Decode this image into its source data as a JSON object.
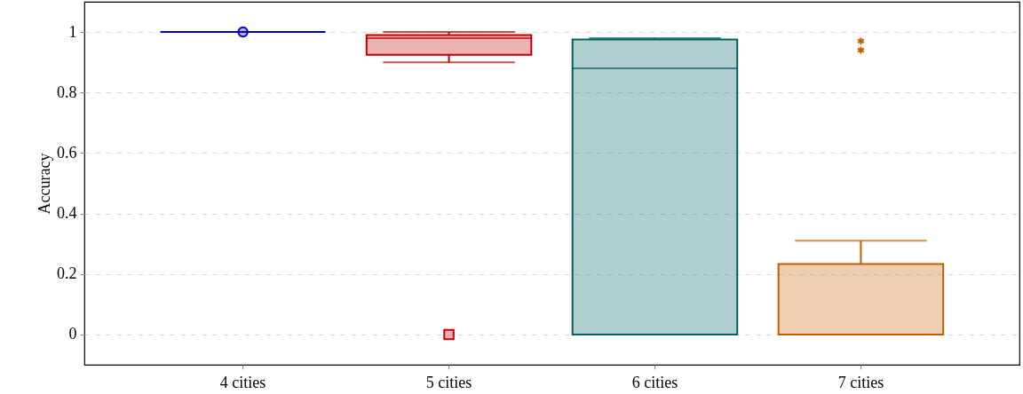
{
  "chart_data": {
    "type": "box",
    "ylabel": "Accuracy",
    "categories": [
      "4 cities",
      "5 cities",
      "6 cities",
      "7 cities"
    ],
    "ylim": [
      -0.1,
      1.1
    ],
    "yticks": [
      0,
      0.2,
      0.4,
      0.6,
      0.8,
      1
    ],
    "grid": "y",
    "line_style": "solid",
    "series": [
      {
        "color": "#0000bf",
        "marker": "circle",
        "x": [
          "4 cities"
        ],
        "boxes": [
          {
            "low": 1,
            "q1": 1,
            "median": 1,
            "q3": 1,
            "high": 1,
            "outliers": [
              1
            ]
          }
        ]
      },
      {
        "color": "#bf0000",
        "marker": "square",
        "x": [
          "5 cities"
        ],
        "boxes": [
          {
            "low": 0.9,
            "q1": 0.925,
            "median": 0.98,
            "q3": 0.99,
            "high": 1,
            "outliers": [
              0
            ]
          }
        ]
      },
      {
        "color": "#006060",
        "x": [
          "6 cities"
        ],
        "boxes": [
          {
            "low": 0,
            "q1": 0,
            "median": 0.88,
            "q3": 0.975,
            "high": 0.98
          }
        ]
      },
      {
        "color": "#bf5f00",
        "marker": "star",
        "x": [
          "7 cities"
        ],
        "boxes": [
          {
            "low": 0,
            "q1": 0,
            "median": 0,
            "q3": 0.233,
            "high": 0.31,
            "outliers": [
              0.97,
              0.94
            ]
          }
        ]
      }
    ]
  }
}
